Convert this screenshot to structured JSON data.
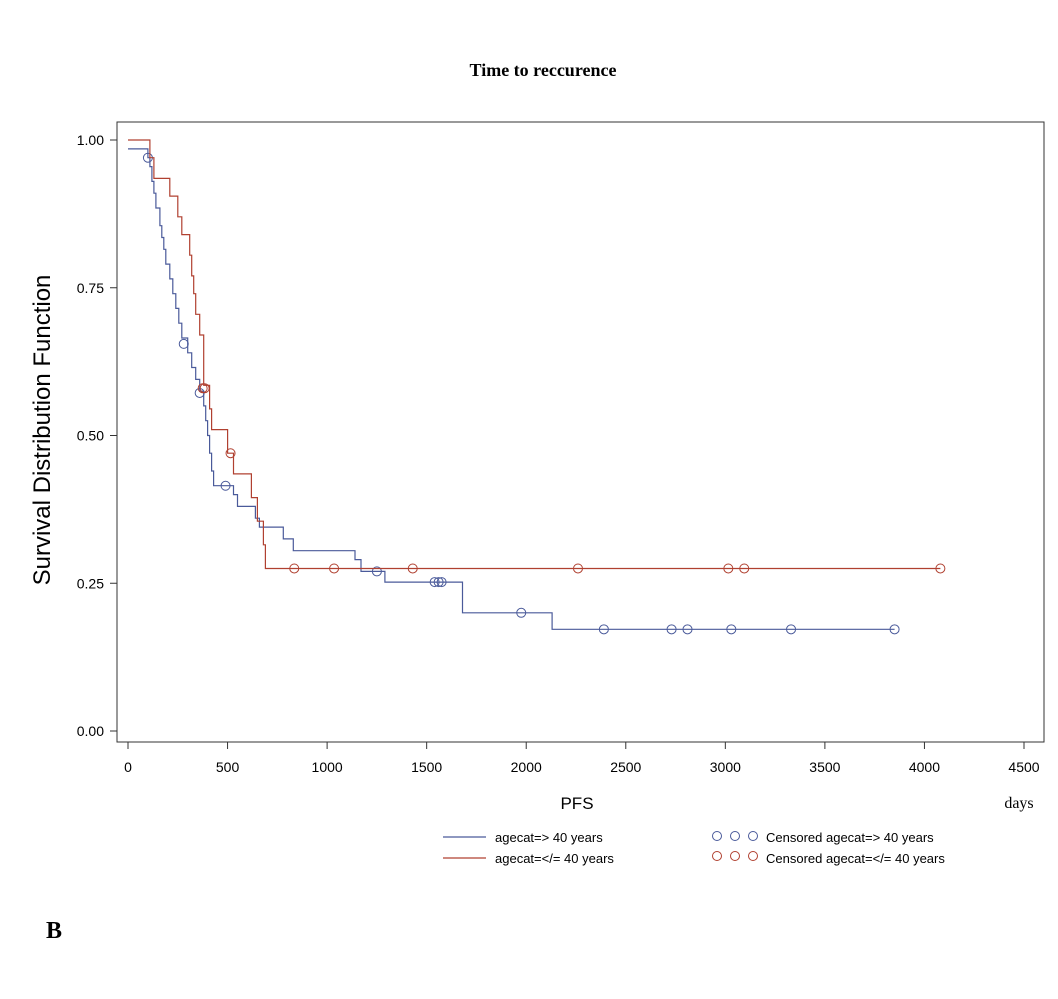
{
  "chart_data": {
    "type": "line",
    "title": "Time to reccurence",
    "xlabel": "PFS",
    "xunits": "days",
    "ylabel": "Survival Distribution Function",
    "panel_label": "B",
    "xlim": [
      0,
      4500
    ],
    "ylim": [
      0,
      1
    ],
    "xticks": [
      "0",
      "500",
      "1000",
      "1500",
      "2000",
      "2500",
      "3000",
      "3500",
      "4000",
      "4500"
    ],
    "yticks": [
      "0.00",
      "0.25",
      "0.50",
      "0.75",
      "1.00"
    ],
    "grid": false,
    "legend_position": "bottom",
    "series": [
      {
        "name": "agecat=> 40 years",
        "censored_name": "Censored agecat=> 40 years",
        "color": "#4a5a9a",
        "steps": [
          [
            0,
            0.985
          ],
          [
            100,
            0.97
          ],
          [
            110,
            0.955
          ],
          [
            120,
            0.93
          ],
          [
            130,
            0.91
          ],
          [
            140,
            0.885
          ],
          [
            160,
            0.855
          ],
          [
            170,
            0.835
          ],
          [
            180,
            0.815
          ],
          [
            190,
            0.79
          ],
          [
            210,
            0.765
          ],
          [
            225,
            0.74
          ],
          [
            240,
            0.715
          ],
          [
            255,
            0.69
          ],
          [
            270,
            0.665
          ],
          [
            300,
            0.64
          ],
          [
            320,
            0.615
          ],
          [
            340,
            0.595
          ],
          [
            360,
            0.575
          ],
          [
            380,
            0.55
          ],
          [
            390,
            0.525
          ],
          [
            400,
            0.5
          ],
          [
            410,
            0.47
          ],
          [
            420,
            0.44
          ],
          [
            430,
            0.415
          ],
          [
            530,
            0.4
          ],
          [
            550,
            0.38
          ],
          [
            640,
            0.36
          ],
          [
            660,
            0.345
          ],
          [
            780,
            0.325
          ],
          [
            830,
            0.305
          ],
          [
            1140,
            0.29
          ],
          [
            1170,
            0.27
          ],
          [
            1290,
            0.252
          ],
          [
            1680,
            0.2
          ],
          [
            2130,
            0.172
          ],
          [
            3850,
            0.172
          ]
        ],
        "censored": [
          [
            100,
            0.97
          ],
          [
            280,
            0.655
          ],
          [
            360,
            0.572
          ],
          [
            490,
            0.415
          ],
          [
            1250,
            0.27
          ],
          [
            1540,
            0.252
          ],
          [
            1560,
            0.252
          ],
          [
            1575,
            0.252
          ],
          [
            1975,
            0.2
          ],
          [
            2390,
            0.172
          ],
          [
            2730,
            0.172
          ],
          [
            2810,
            0.172
          ],
          [
            3030,
            0.172
          ],
          [
            3330,
            0.172
          ],
          [
            3850,
            0.172
          ]
        ]
      },
      {
        "name": "agecat=</= 40 years",
        "censored_name": "Censored agecat=</= 40 years",
        "color": "#b04030",
        "steps": [
          [
            0,
            1.0
          ],
          [
            110,
            0.97
          ],
          [
            130,
            0.935
          ],
          [
            210,
            0.905
          ],
          [
            250,
            0.87
          ],
          [
            270,
            0.84
          ],
          [
            310,
            0.805
          ],
          [
            320,
            0.77
          ],
          [
            330,
            0.74
          ],
          [
            340,
            0.705
          ],
          [
            360,
            0.67
          ],
          [
            380,
            0.585
          ],
          [
            410,
            0.545
          ],
          [
            420,
            0.51
          ],
          [
            500,
            0.47
          ],
          [
            530,
            0.435
          ],
          [
            620,
            0.395
          ],
          [
            650,
            0.355
          ],
          [
            680,
            0.315
          ],
          [
            690,
            0.275
          ],
          [
            4080,
            0.275
          ]
        ],
        "censored": [
          [
            375,
            0.58
          ],
          [
            385,
            0.58
          ],
          [
            515,
            0.47
          ],
          [
            835,
            0.275
          ],
          [
            1035,
            0.275
          ],
          [
            1430,
            0.275
          ],
          [
            2260,
            0.275
          ],
          [
            3015,
            0.275
          ],
          [
            3095,
            0.275
          ],
          [
            4080,
            0.275
          ]
        ]
      }
    ]
  }
}
